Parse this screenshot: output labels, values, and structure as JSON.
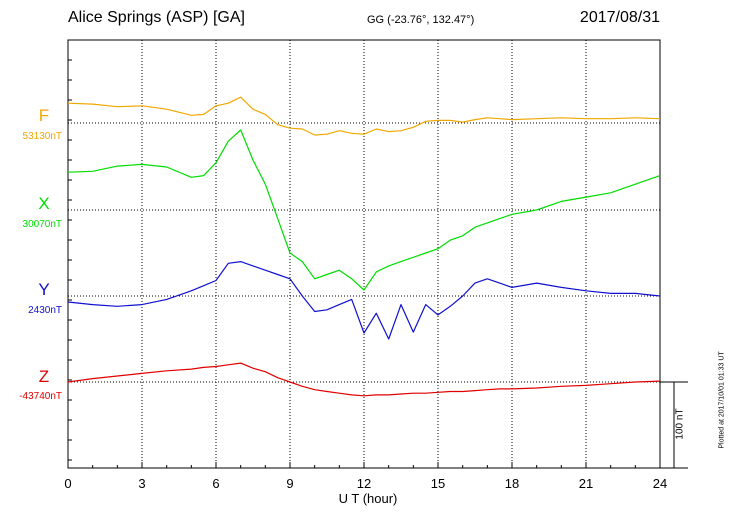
{
  "header": {
    "station": "Alice Springs (ASP)  [GA]",
    "coords": "GG (-23.76°, 132.47°)",
    "date": "2017/08/31"
  },
  "footer": {
    "plotted": "Plotted at 2017/10/01 01:33 UT",
    "scale_label": "100 nT"
  },
  "chart_data": {
    "type": "line",
    "xlabel": "U T (hour)",
    "xlim": [
      0,
      24
    ],
    "x_ticks": [
      "0",
      "3",
      "6",
      "9",
      "12",
      "15",
      "18",
      "21",
      "24"
    ],
    "scale_bar_nT": 100,
    "x": [
      0,
      1,
      2,
      3,
      4,
      5,
      5.5,
      6,
      6.5,
      7,
      7.5,
      8,
      8.5,
      9,
      9.5,
      10,
      10.5,
      11,
      11.5,
      12,
      12.5,
      13,
      13.5,
      14,
      14.5,
      15,
      15.5,
      16,
      16.5,
      17,
      17.5,
      18,
      19,
      20,
      21,
      22,
      23,
      24
    ],
    "series": [
      {
        "name": "F",
        "baseline_label": "53130nT",
        "baseline_nT": 53130,
        "color": "#f0a800",
        "values": [
          53153,
          53152,
          53149,
          53150,
          53146,
          53139,
          53140,
          53150,
          53153,
          53160,
          53146,
          53140,
          53128,
          53124,
          53123,
          53116,
          53117,
          53121,
          53118,
          53117,
          53123,
          53120,
          53121,
          53125,
          53132,
          53133,
          53133,
          53131,
          53134,
          53136,
          53135,
          53134,
          53135,
          53136,
          53135,
          53135,
          53136,
          53135
        ]
      },
      {
        "name": "X",
        "baseline_label": "30070nT",
        "baseline_nT": 30070,
        "color": "#00dd00",
        "values": [
          30114,
          30115,
          30121,
          30123,
          30120,
          30108,
          30110,
          30125,
          30150,
          30163,
          30128,
          30100,
          30060,
          30020,
          30010,
          29990,
          29995,
          30000,
          29990,
          29977,
          29998,
          30005,
          30010,
          30015,
          30020,
          30025,
          30035,
          30040,
          30050,
          30055,
          30060,
          30065,
          30070,
          30080,
          30085,
          30090,
          30100,
          30110
        ]
      },
      {
        "name": "Y",
        "baseline_label": "2430nT",
        "baseline_nT": 2430,
        "color": "#1010d0",
        "values": [
          2423,
          2420,
          2418,
          2420,
          2426,
          2436,
          2442,
          2448,
          2468,
          2470,
          2465,
          2460,
          2455,
          2450,
          2430,
          2412,
          2414,
          2420,
          2426,
          2387,
          2410,
          2380,
          2420,
          2388,
          2420,
          2408,
          2418,
          2430,
          2445,
          2450,
          2445,
          2440,
          2445,
          2440,
          2436,
          2433,
          2433,
          2430
        ]
      },
      {
        "name": "Z",
        "baseline_label": "-43740nT",
        "baseline_nT": -43740,
        "color": "#e00000",
        "values": [
          -43740,
          -43736,
          -43733,
          -43730,
          -43727,
          -43725,
          -43723,
          -43722,
          -43720,
          -43718,
          -43724,
          -43728,
          -43735,
          -43740,
          -43745,
          -43749,
          -43751,
          -43753,
          -43755,
          -43756,
          -43755,
          -43755,
          -43754,
          -43753,
          -43753,
          -43752,
          -43751,
          -43751,
          -43750,
          -43749,
          -43748,
          -43748,
          -43747,
          -43745,
          -43744,
          -43742,
          -43740,
          -43739
        ]
      }
    ]
  }
}
